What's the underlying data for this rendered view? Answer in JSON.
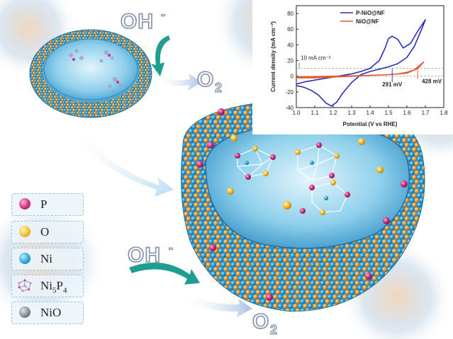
{
  "ions": {
    "top_ion": "OH",
    "top_ion_charge": "-",
    "top_product": "O",
    "top_product_sub": "2",
    "bottom_ion": "OH",
    "bottom_ion_charge": "-",
    "bottom_product": "O",
    "bottom_product_sub": "2"
  },
  "legend": [
    {
      "label": "P",
      "color": "#d0307e"
    },
    {
      "label": "O",
      "color": "#f5c12c"
    },
    {
      "label": "Ni",
      "color": "#2fa9df"
    },
    {
      "label_main": "Ni",
      "label_sub1": "5",
      "label_mid": "P",
      "label_sub2": "4",
      "color": "#b79ad2"
    },
    {
      "label": "NiO",
      "color": "#6e7275"
    }
  ],
  "chart_data": {
    "type": "line",
    "xlabel": "Potential (V vs RHE)",
    "ylabel": "Current density (mA cm⁻²)",
    "xlim": [
      1.0,
      1.8
    ],
    "ylim": [
      -40,
      90
    ],
    "xticks": [
      "1.0",
      "1.1",
      "1.2",
      "1.3",
      "1.4",
      "1.5",
      "1.6",
      "1.7",
      "1.8"
    ],
    "yticks": [
      "-40",
      "-20",
      "0",
      "20",
      "40",
      "60",
      "80"
    ],
    "legend_position": "top-right",
    "series": [
      {
        "name": "P-NiO@NF",
        "color": "#2a2fb8",
        "x": [
          1.0,
          1.05,
          1.1,
          1.15,
          1.2,
          1.25,
          1.3,
          1.35,
          1.4,
          1.45,
          1.48,
          1.5,
          1.52,
          1.55,
          1.58,
          1.62,
          1.66,
          1.7,
          1.7,
          1.68,
          1.64,
          1.6,
          1.55,
          1.5,
          1.45,
          1.4,
          1.35,
          1.3,
          1.25,
          1.22,
          1.19,
          1.16,
          1.12,
          1.08,
          1.04,
          1.0
        ],
        "y": [
          -10,
          -7,
          -5,
          -3,
          -1,
          1,
          3,
          6,
          10,
          20,
          35,
          48,
          51,
          47,
          36,
          42,
          58,
          72,
          72,
          60,
          38,
          24,
          16,
          12,
          9,
          6,
          2,
          -8,
          -22,
          -33,
          -38,
          -34,
          -24,
          -18,
          -14,
          -12
        ]
      },
      {
        "name": "NiO@NF",
        "color": "#e4572e",
        "x": [
          1.0,
          1.2,
          1.4,
          1.5,
          1.55,
          1.6,
          1.64,
          1.67,
          1.69,
          1.69,
          1.66,
          1.6,
          1.5,
          1.4,
          1.3,
          1.2,
          1.1,
          1.0
        ],
        "y": [
          -1,
          0,
          1,
          2,
          3,
          5,
          8,
          14,
          18,
          18,
          10,
          4,
          2,
          1,
          0,
          -1,
          -2,
          -2
        ]
      }
    ],
    "annotations": [
      {
        "text": "10 mA cm⁻²",
        "y": 10
      },
      {
        "text": "291 mV",
        "x": 1.52
      },
      {
        "text": "428 mV",
        "x": 1.658
      }
    ]
  }
}
